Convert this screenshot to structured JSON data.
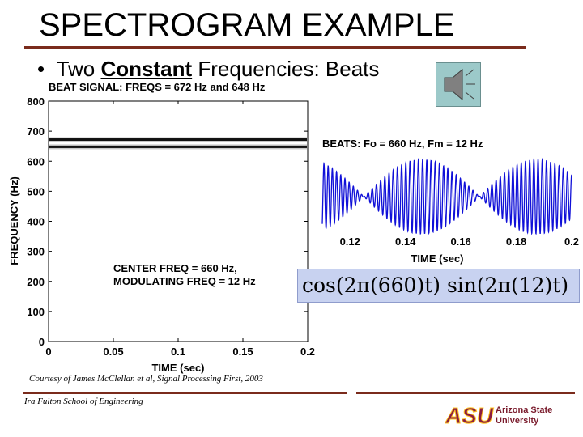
{
  "slide": {
    "title": "SPECTROGRAM EXAMPLE",
    "bullet_prefix": "Two ",
    "bullet_keyword": "Constant",
    "bullet_suffix": " Frequencies: Beats",
    "formula": "cos(2π(660)t) sin(2π(12)t)",
    "courtesy": "Courtesy of James McClellan et al, Signal Processing First, 2003",
    "school": "Ira Fulton School of Engineering",
    "logo_text_line1": "Arizona State",
    "logo_text_line2": "University",
    "logo_letters": "ASU",
    "speaker_icon": "speaker-icon",
    "colors": {
      "accent_rule": "#7a2b1c",
      "waveform": "#1010d8",
      "formula_box": "#c8d2f0",
      "speaker_box": "#9cc9c9",
      "asu_maroon": "#8c1d40",
      "asu_gold": "#ffc627"
    }
  },
  "chart_data": [
    {
      "type": "heatmap",
      "title": "BEAT SIGNAL:  FREQS = 672 Hz and 648 Hz",
      "xlabel": "TIME (sec)",
      "ylabel": "FREQUENCY (Hz)",
      "xlim": [
        0,
        0.2
      ],
      "ylim": [
        0,
        800
      ],
      "x_ticks": [
        "0",
        "0.05",
        "0.1",
        "0.15",
        "0.2"
      ],
      "y_ticks": [
        "0",
        "100",
        "200",
        "300",
        "400",
        "500",
        "600",
        "700",
        "800"
      ],
      "lines": [
        {
          "freq": 672
        },
        {
          "freq": 648
        }
      ],
      "annotation_line1": "CENTER FREQ = 660 Hz,",
      "annotation_line2": "MODULATING FREQ = 12 Hz",
      "grid": false
    },
    {
      "type": "line",
      "title": "BEATS: Fo = 660 Hz,  Fm = 12 Hz",
      "xlabel": "TIME (sec)",
      "xlim": [
        0.11,
        0.2
      ],
      "x_ticks": [
        "0.12",
        "0.14",
        "0.16",
        "0.18",
        "0.2"
      ],
      "carrier_hz": 660,
      "modulating_hz": 12,
      "grid": false
    }
  ]
}
